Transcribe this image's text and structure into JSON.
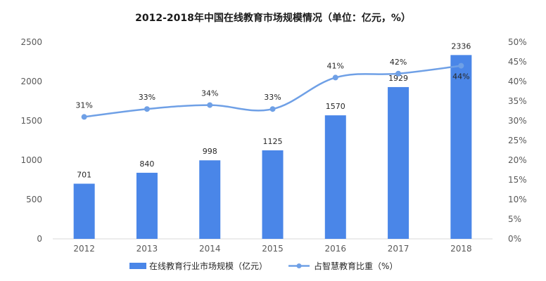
{
  "chart_data": {
    "type": "bar",
    "title": "2012-2018年中国在线教育市场规模情况（单位：亿元，%）",
    "categories": [
      "2012",
      "2013",
      "2014",
      "2015",
      "2016",
      "2017",
      "2018"
    ],
    "series": [
      {
        "name": "在线教育行业市场规模（亿元）",
        "type": "bar",
        "axis": "left",
        "values": [
          701,
          840,
          998,
          1125,
          1570,
          1929,
          2336
        ],
        "labels": [
          "701",
          "840",
          "998",
          "1125",
          "1570",
          "1929",
          "2336"
        ],
        "color": "#4a86e8"
      },
      {
        "name": "占智慧教育比重（%）",
        "type": "line",
        "axis": "right",
        "values": [
          31,
          33,
          34,
          33,
          41,
          42,
          44
        ],
        "labels": [
          "31%",
          "33%",
          "34%",
          "33%",
          "41%",
          "42%",
          "44%"
        ],
        "color": "#6fa0e6"
      }
    ],
    "y_left": {
      "min": 0,
      "max": 2500,
      "ticks": [
        "0",
        "500",
        "1000",
        "1500",
        "2000",
        "2500"
      ]
    },
    "y_right": {
      "min": 0,
      "max": 50,
      "ticks": [
        "0%",
        "5%",
        "10%",
        "15%",
        "20%",
        "25%",
        "30%",
        "35%",
        "40%",
        "45%",
        "50%"
      ]
    },
    "grid": false,
    "legend_position": "bottom"
  }
}
